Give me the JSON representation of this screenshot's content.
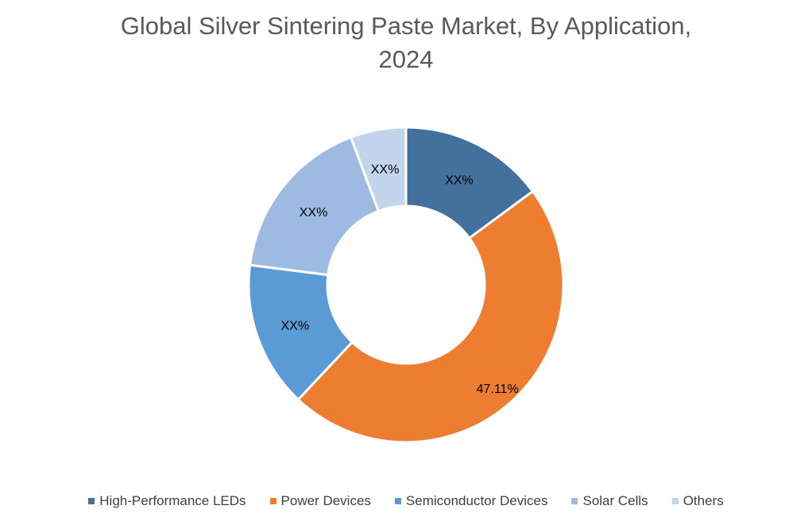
{
  "chart_data": {
    "type": "pie",
    "donut": true,
    "title": "Global Silver Sintering Paste Market, By Application, 2024",
    "title_lines": [
      "Global Silver Sintering Paste Market, By Application,",
      "2024"
    ],
    "categories": [
      "High-Performance LEDs",
      "Power Devices",
      "Semiconductor Devices",
      "Solar Cells",
      "Others"
    ],
    "values": [
      14.9,
      47.11,
      15.0,
      17.3,
      5.7
    ],
    "data_labels": [
      "XX%",
      "47.11%",
      "XX%",
      "XX%",
      "XX%"
    ],
    "colors": [
      "#41719c",
      "#ed7d31",
      "#5b9bd5",
      "#9dbbe0",
      "#c2d5ec"
    ],
    "legend_position": "bottom"
  }
}
